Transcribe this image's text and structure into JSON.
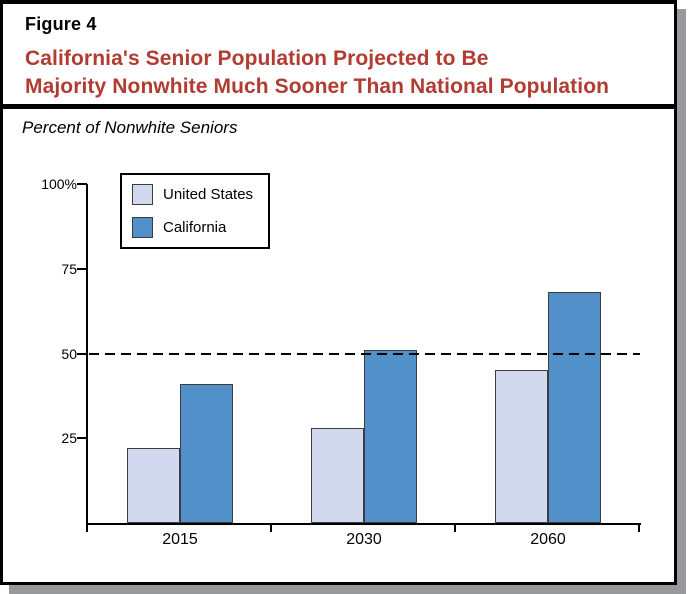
{
  "figure": {
    "label": "Figure 4",
    "title_line1": "California's Senior Population Projected to Be",
    "title_line2": "Majority Nonwhite Much Sooner Than National Population",
    "subtitle": "Percent of Nonwhite Seniors"
  },
  "colors": {
    "title_red": "#b23b32",
    "us_fill": "#d2d8ee",
    "ca_fill": "#5190c9",
    "bar_border": "#3c3c3c",
    "frame_shadow": "#98999b",
    "axis_black": "#000000"
  },
  "chart_data": {
    "type": "bar",
    "title": "California's Senior Population Projected to Be Majority Nonwhite Much Sooner Than National Population",
    "ylabel": "Percent of Nonwhite Seniors",
    "xlabel": "",
    "categories": [
      "2015",
      "2030",
      "2060"
    ],
    "series": [
      {
        "name": "United States",
        "color": "#d2d8ee",
        "values": [
          22,
          28,
          45
        ]
      },
      {
        "name": "California",
        "color": "#5190c9",
        "values": [
          41,
          51,
          68
        ]
      }
    ],
    "ylim": [
      0,
      100
    ],
    "yticks": [
      {
        "label": "100%",
        "value": 100
      },
      {
        "label": "75",
        "value": 75
      },
      {
        "label": "50",
        "value": 50
      },
      {
        "label": "25",
        "value": 25
      }
    ],
    "reference_line": {
      "value": 50,
      "style": "dashed"
    },
    "legend_position": "top-left",
    "grid": false
  }
}
